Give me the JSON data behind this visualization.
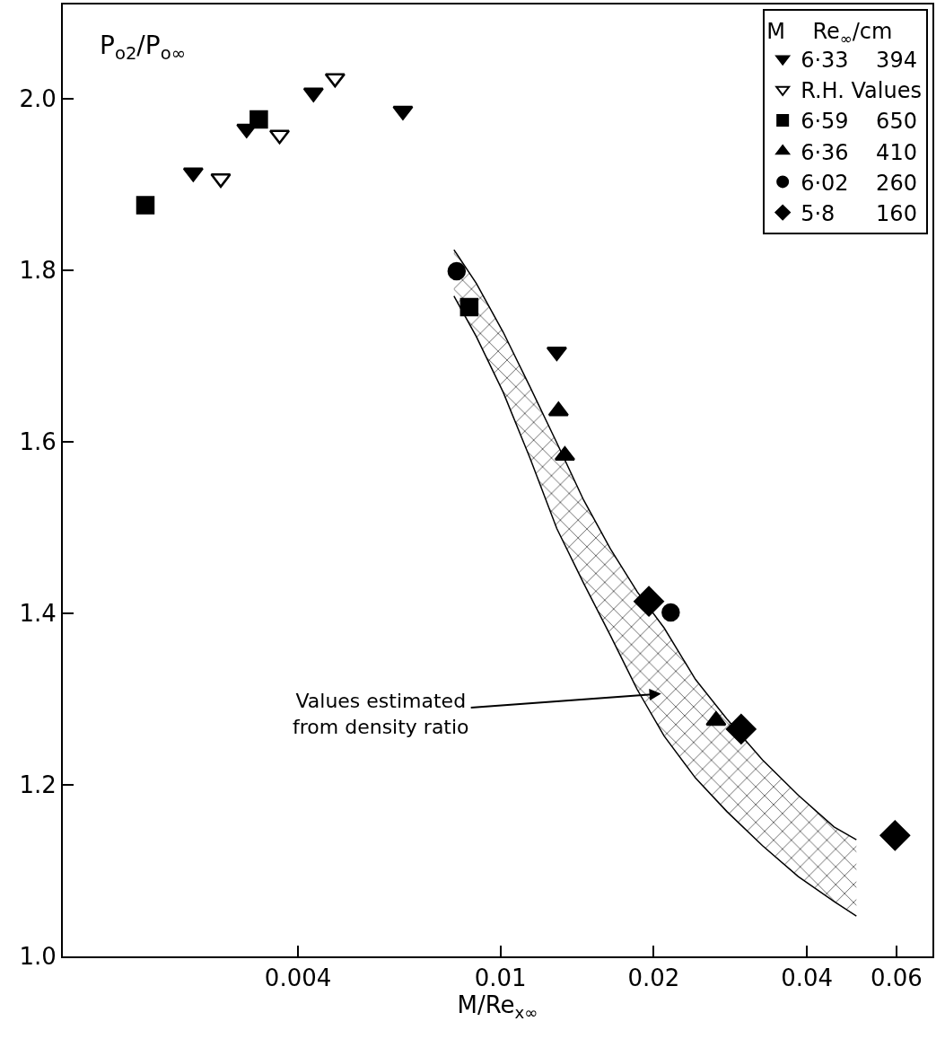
{
  "chart_data": {
    "type": "scatter",
    "xlabel": "M/Re$_{x∞}$",
    "ylabel": "P$_{o2}$/P$_{o∞}$",
    "legend_title": "M    Re$_{∞}$/cm",
    "log": "x",
    "grid": false,
    "legend": "top right",
    "xlim": [
      0.00138,
      0.0706
    ],
    "xticks": [
      0.004,
      0.01,
      0.02,
      0.04,
      0.06
    ],
    "ylim": [
      1.0,
      2.11
    ],
    "yticks": [
      {
        "value": 1.0,
        "label": "1.0"
      },
      1.2,
      1.4,
      1.6,
      1.8,
      {
        "value": 2.0,
        "label": "2.0"
      }
    ],
    "annotations": [
      "Values estimated\nfrom density ratio"
    ],
    "series": [
      {
        "name": "6·33    394",
        "color": "#000000",
        "marker": "triangle-down",
        "x": [
          0.00249,
          0.00317,
          0.00429,
          0.00643,
          0.0129
        ],
        "values": [
          1.914,
          1.965,
          2.007,
          1.986,
          1.705
        ]
      },
      {
        "name": "R.H. Values",
        "color": "#000000",
        "marker": "triangle-down-open",
        "x": [
          0.00282,
          0.00368,
          0.00473
        ],
        "values": [
          1.907,
          1.958,
          2.024
        ]
      },
      {
        "name": "6·59    650",
        "color": "#000000",
        "marker": "square",
        "x": [
          0.002005,
          0.00335,
          0.00868
        ],
        "values": [
          1.876,
          1.976,
          1.757
        ]
      },
      {
        "name": "6·36    410",
        "color": "#000000",
        "marker": "triangle",
        "x": [
          0.013,
          0.01338,
          0.02652
        ],
        "values": [
          1.636,
          1.584,
          1.275
        ]
      },
      {
        "name": "6·02    260",
        "color": "#000000",
        "marker": "circle",
        "x": [
          0.0082,
          0.0216
        ],
        "values": [
          1.799,
          1.401
        ]
      },
      {
        "name": "5·8      160",
        "color": "#000000",
        "marker": "diamond",
        "x": [
          0.01957,
          0.02971,
          0.0596
        ],
        "values": [
          1.414,
          1.265,
          1.141
        ]
      },
      {
        "type": "line",
        "marker": "none",
        "color": "#000000",
        "x": [
          0.0081,
          0.00896,
          0.01012,
          0.01143,
          0.0129,
          0.01457,
          0.01645,
          0.01857,
          0.02097,
          0.02416,
          0.02784,
          0.03273,
          0.03847,
          0.04524,
          0.05005
        ],
        "values": [
          1.824,
          1.785,
          1.728,
          1.664,
          1.599,
          1.532,
          1.475,
          1.425,
          1.383,
          1.323,
          1.277,
          1.229,
          1.188,
          1.151,
          1.136
        ],
        "upper": [
          1.824,
          1.785,
          1.728,
          1.664,
          1.599,
          1.532,
          1.475,
          1.425,
          1.383,
          1.323,
          1.277,
          1.229,
          1.188,
          1.151,
          1.136
        ],
        "lower": [
          1.77,
          1.723,
          1.658,
          1.581,
          1.499,
          1.435,
          1.374,
          1.311,
          1.257,
          1.208,
          1.169,
          1.129,
          1.093,
          1.064,
          1.047
        ]
      },
      {
        "type": "line",
        "marker": "none",
        "color": "#000000",
        "x": [
          0.0081,
          0.00896,
          0.01012,
          0.01143,
          0.0129,
          0.01457,
          0.01645,
          0.01857,
          0.02097,
          0.02416,
          0.02784,
          0.03273,
          0.03847,
          0.04524,
          0.05005
        ],
        "values": [
          1.77,
          1.723,
          1.658,
          1.581,
          1.499,
          1.435,
          1.374,
          1.311,
          1.257,
          1.208,
          1.169,
          1.129,
          1.093,
          1.064,
          1.047
        ]
      }
    ]
  }
}
